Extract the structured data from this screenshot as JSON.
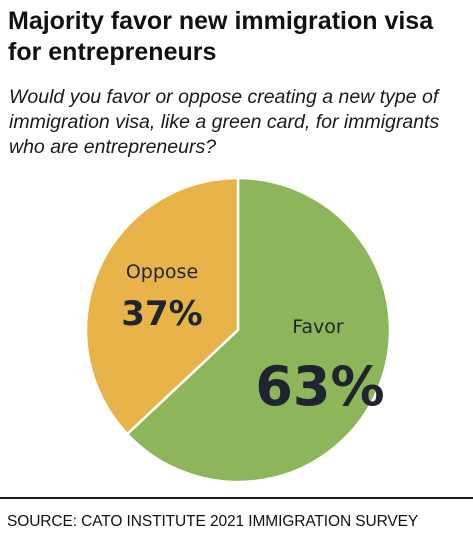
{
  "title": "Majority favor new immigration visa for entrepreneurs",
  "subtitle": "Would you favor or oppose creating a new type of immigration visa, like a green card, for immigrants who are entrepreneurs?",
  "source": "SOURCE: CATO INSTITUTE 2021 IMMIGRATION SURVEY",
  "chart_data": {
    "type": "pie",
    "slices": [
      {
        "label": "Favor",
        "value": 63,
        "display": "63%",
        "color": "#8db55a"
      },
      {
        "label": "Oppose",
        "value": 37,
        "display": "37%",
        "color": "#e8b449"
      }
    ],
    "slice_border_color": "#ffffff",
    "label_color": "#1e2430"
  }
}
